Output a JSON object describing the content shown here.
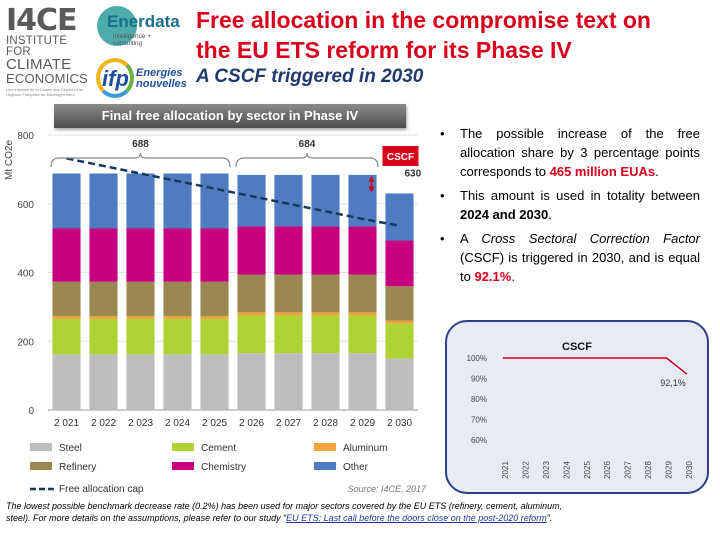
{
  "logos": {
    "i4ce_mark": "I4CE",
    "i4ce_lines": [
      "INSTITUTE FOR",
      "CLIMATE",
      "ECONOMICS"
    ],
    "i4ce_tiny": "Une initiative de la Caisse des Dépôts et de l'Agence Française de Développement",
    "enerdata_name": "Enerdata",
    "enerdata_tag": "intelligence + consulting",
    "ifp_mark": "ifp",
    "ifp_tag_1": "Energies",
    "ifp_tag_2": "nouvelles"
  },
  "title_line1": "Free allocation in the compromise text on",
  "title_line2": "the EU ETS reform for its Phase IV",
  "subtitle": "A CSCF triggered in 2030",
  "chart_banner": "Final free allocation by sector in Phase IV",
  "chart_data": [
    {
      "type": "bar",
      "stacked": true,
      "title": "Final free allocation by sector in Phase IV",
      "ylabel": "Mt CO2e",
      "ylim": [
        0,
        800
      ],
      "yticks": [
        "0",
        "200",
        "400",
        "600",
        "800"
      ],
      "categories": [
        "2 021",
        "2 022",
        "2 023",
        "2 024",
        "2 025",
        "2 026",
        "2 027",
        "2 028",
        "2 029",
        "2 030"
      ],
      "series": [
        {
          "name": "Steel",
          "color": "#bdbdbd",
          "values": [
            162,
            162,
            162,
            162,
            162,
            165,
            165,
            165,
            165,
            150
          ]
        },
        {
          "name": "Cement",
          "color": "#aed134",
          "values": [
            103,
            103,
            103,
            103,
            103,
            110,
            110,
            110,
            110,
            102
          ]
        },
        {
          "name": "Aluminum",
          "color": "#f2a33a",
          "values": [
            8,
            8,
            8,
            8,
            8,
            9,
            9,
            9,
            9,
            8
          ]
        },
        {
          "name": "Refinery",
          "color": "#9a8752",
          "values": [
            100,
            100,
            100,
            100,
            100,
            110,
            110,
            110,
            110,
            100
          ]
        },
        {
          "name": "Chemistry",
          "color": "#c8007f",
          "values": [
            155,
            155,
            155,
            155,
            155,
            140,
            140,
            140,
            140,
            133
          ]
        },
        {
          "name": "Other",
          "color": "#4f7bc0",
          "values": [
            160,
            160,
            160,
            160,
            160,
            150,
            150,
            150,
            150,
            137
          ]
        }
      ],
      "line": {
        "name": "Free allocation cap",
        "color": "#17375e",
        "style": "dashed",
        "values": [
          732,
          710,
          688,
          666,
          644,
          622,
          600,
          578,
          556,
          536
        ]
      },
      "annotations": {
        "brace_1": {
          "label": "688",
          "from": "2 021",
          "to": "2 025"
        },
        "brace_2": {
          "label": "684",
          "from": "2 026",
          "to": "2 029"
        },
        "total_2030": "630",
        "cscf_label": "CSCF"
      },
      "legend": {
        "placement": "bottom"
      },
      "source": "Source: I4CE,  2017",
      "grid": true
    },
    {
      "type": "line",
      "title": "CSCF",
      "categories": [
        "2021",
        "2022",
        "2023",
        "2024",
        "2025",
        "2026",
        "2027",
        "2028",
        "2029",
        "2030"
      ],
      "yticks": [
        "100%",
        "90%",
        "80%",
        "70%",
        "60%"
      ],
      "ylim": [
        60,
        100
      ],
      "series": [
        {
          "color": "#d9001b",
          "values": [
            100,
            100,
            100,
            100,
            100,
            100,
            100,
            100,
            100,
            92.1
          ]
        }
      ],
      "data_label": "92,1%"
    }
  ],
  "bullets": {
    "b1_pre": "The possible increase of the free allocation share by 3 percentage points corresponds to ",
    "b1_hl": "465 million EUAs",
    "b1_post": ".",
    "b2_pre": "This amount is used in totality between ",
    "b2_bold": "2024 and 2030",
    "b2_post": ".",
    "b3_pre": " A ",
    "b3_it": "Cross Sectoral Correction Factor",
    "b3_mid": " (CSCF) is triggered in 2030, and is equal to ",
    "b3_hl": "92.1%",
    "b3_post": "."
  },
  "footnote": {
    "line1": "The lowest possible benchmark decrease rate (0.2%) has been used for major sectors covered by the EU ETS (refinery, cement, aluminum,",
    "line2_pre": "steel). For more details on the assumptions, please refer to our study “",
    "link": "EU ETS: Last call before the doors close on the post-2020 reform",
    "line2_post": "”."
  }
}
